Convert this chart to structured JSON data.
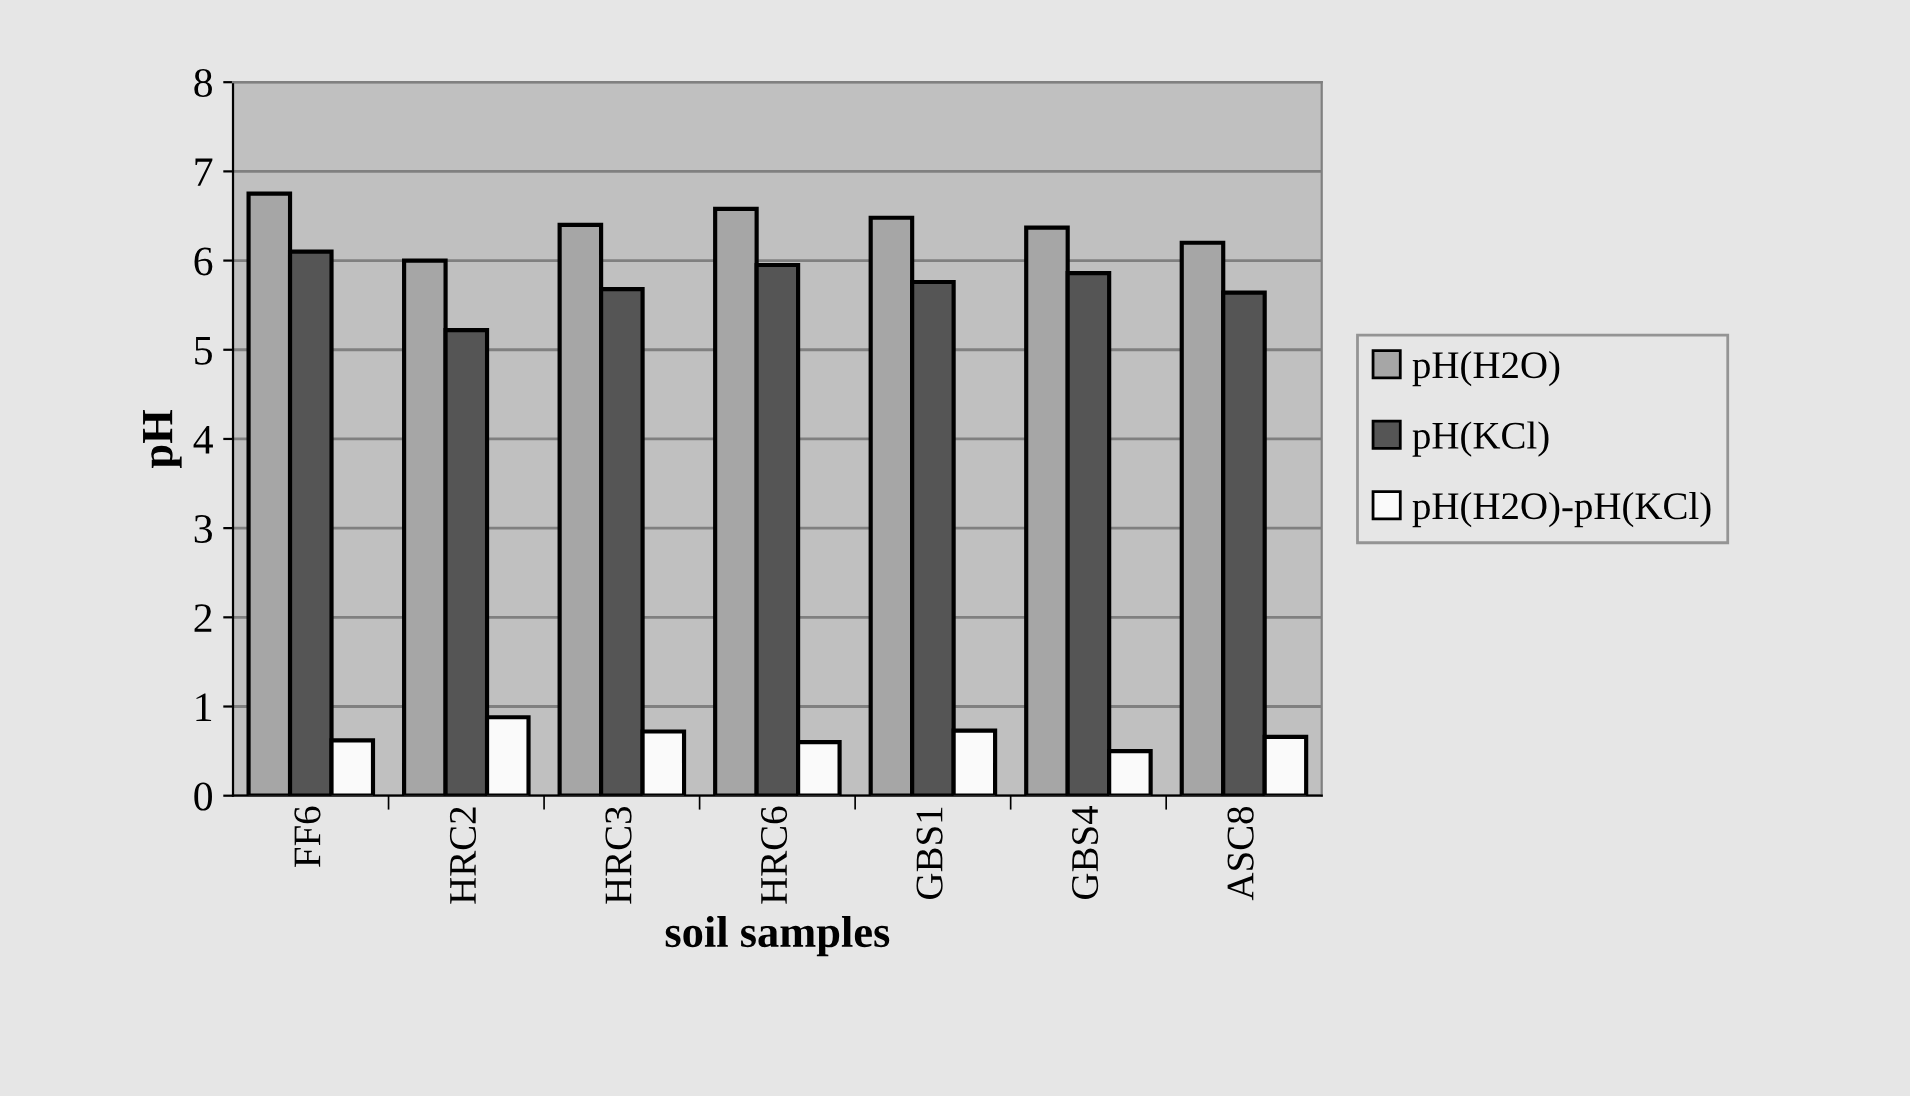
{
  "chart_data": {
    "type": "bar",
    "xlabel": "soil samples",
    "ylabel": "pH",
    "categories": [
      "FF6",
      "HRC2",
      "HRC3",
      "HRC6",
      "GBS1",
      "GBS4",
      "ASC8"
    ],
    "series": [
      {
        "name": "pH(H2O)",
        "color": "#a6a6a6",
        "values": [
          6.75,
          6.0,
          6.4,
          6.58,
          6.48,
          6.37,
          6.2
        ]
      },
      {
        "name": "pH(KCl)",
        "color": "#555555",
        "values": [
          6.1,
          5.22,
          5.68,
          5.95,
          5.76,
          5.86,
          5.64
        ]
      },
      {
        "name": "pH(H2O)-pH(KCl)",
        "color": "#fafafa",
        "values": [
          0.62,
          0.88,
          0.72,
          0.6,
          0.73,
          0.5,
          0.66
        ]
      }
    ],
    "ylim": [
      0,
      8
    ],
    "yticks": [
      0,
      1,
      2,
      3,
      4,
      5,
      6,
      7,
      8
    ],
    "grid": "y",
    "legend": "right"
  }
}
